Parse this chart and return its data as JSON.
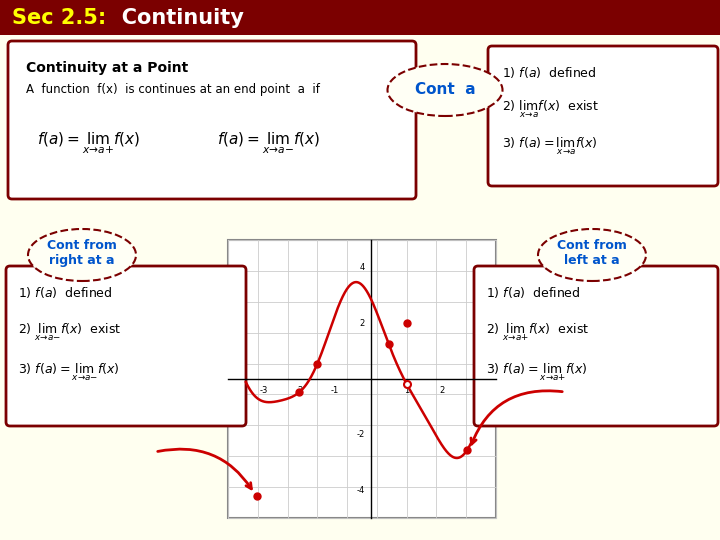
{
  "title_sec": "Sec 2.5:",
  "title_cont": "   Continuity",
  "title_bg": "#7b0000",
  "title_fg_yellow": "#ffff00",
  "title_fg_white": "#ffffff",
  "bg_color": "#fffff0",
  "box_border": "#7b0000",
  "box_bg": "#ffffff",
  "blue_label": "#0055cc",
  "ellipse_border": "#7b0000",
  "ellipse_bg": "#fffff5",
  "top_left_box_title": "Continuity at a Point",
  "top_left_box_text": "A  function  f(x)  is continues at an end point  a  if",
  "top_left_formula1": "$f(a) = \\lim_{x \\to a+} f(x)$",
  "top_left_formula2": "$f(a) = \\lim_{x \\to a-} f(x)$",
  "cont_a_label": "Cont  a",
  "top_right_lines": [
    "1) $f(a)$  defined",
    "2) $\\lim_{x \\to a} f(x)$  exist",
    "3) $f(a) = \\lim_{x \\to a} f(x)$"
  ],
  "cont_right_label": "Cont from\nright at a",
  "bottom_left_lines": [
    "1) $f(a)$  defined",
    "2) $\\lim_{x \\to a-} f(x)$  exist",
    "3) $f(a) = \\lim_{x \\to a-} f(x)$"
  ],
  "cont_left_label": "Cont from\nleft at a",
  "bottom_right_lines": [
    "1) $f(a)$  defined",
    "2) $\\lim_{x \\to a+} f(x)$  exist",
    "3) $f(a) = \\lim_{x \\to a+} f(x)$"
  ],
  "graph_curve_color": "#cc0000"
}
